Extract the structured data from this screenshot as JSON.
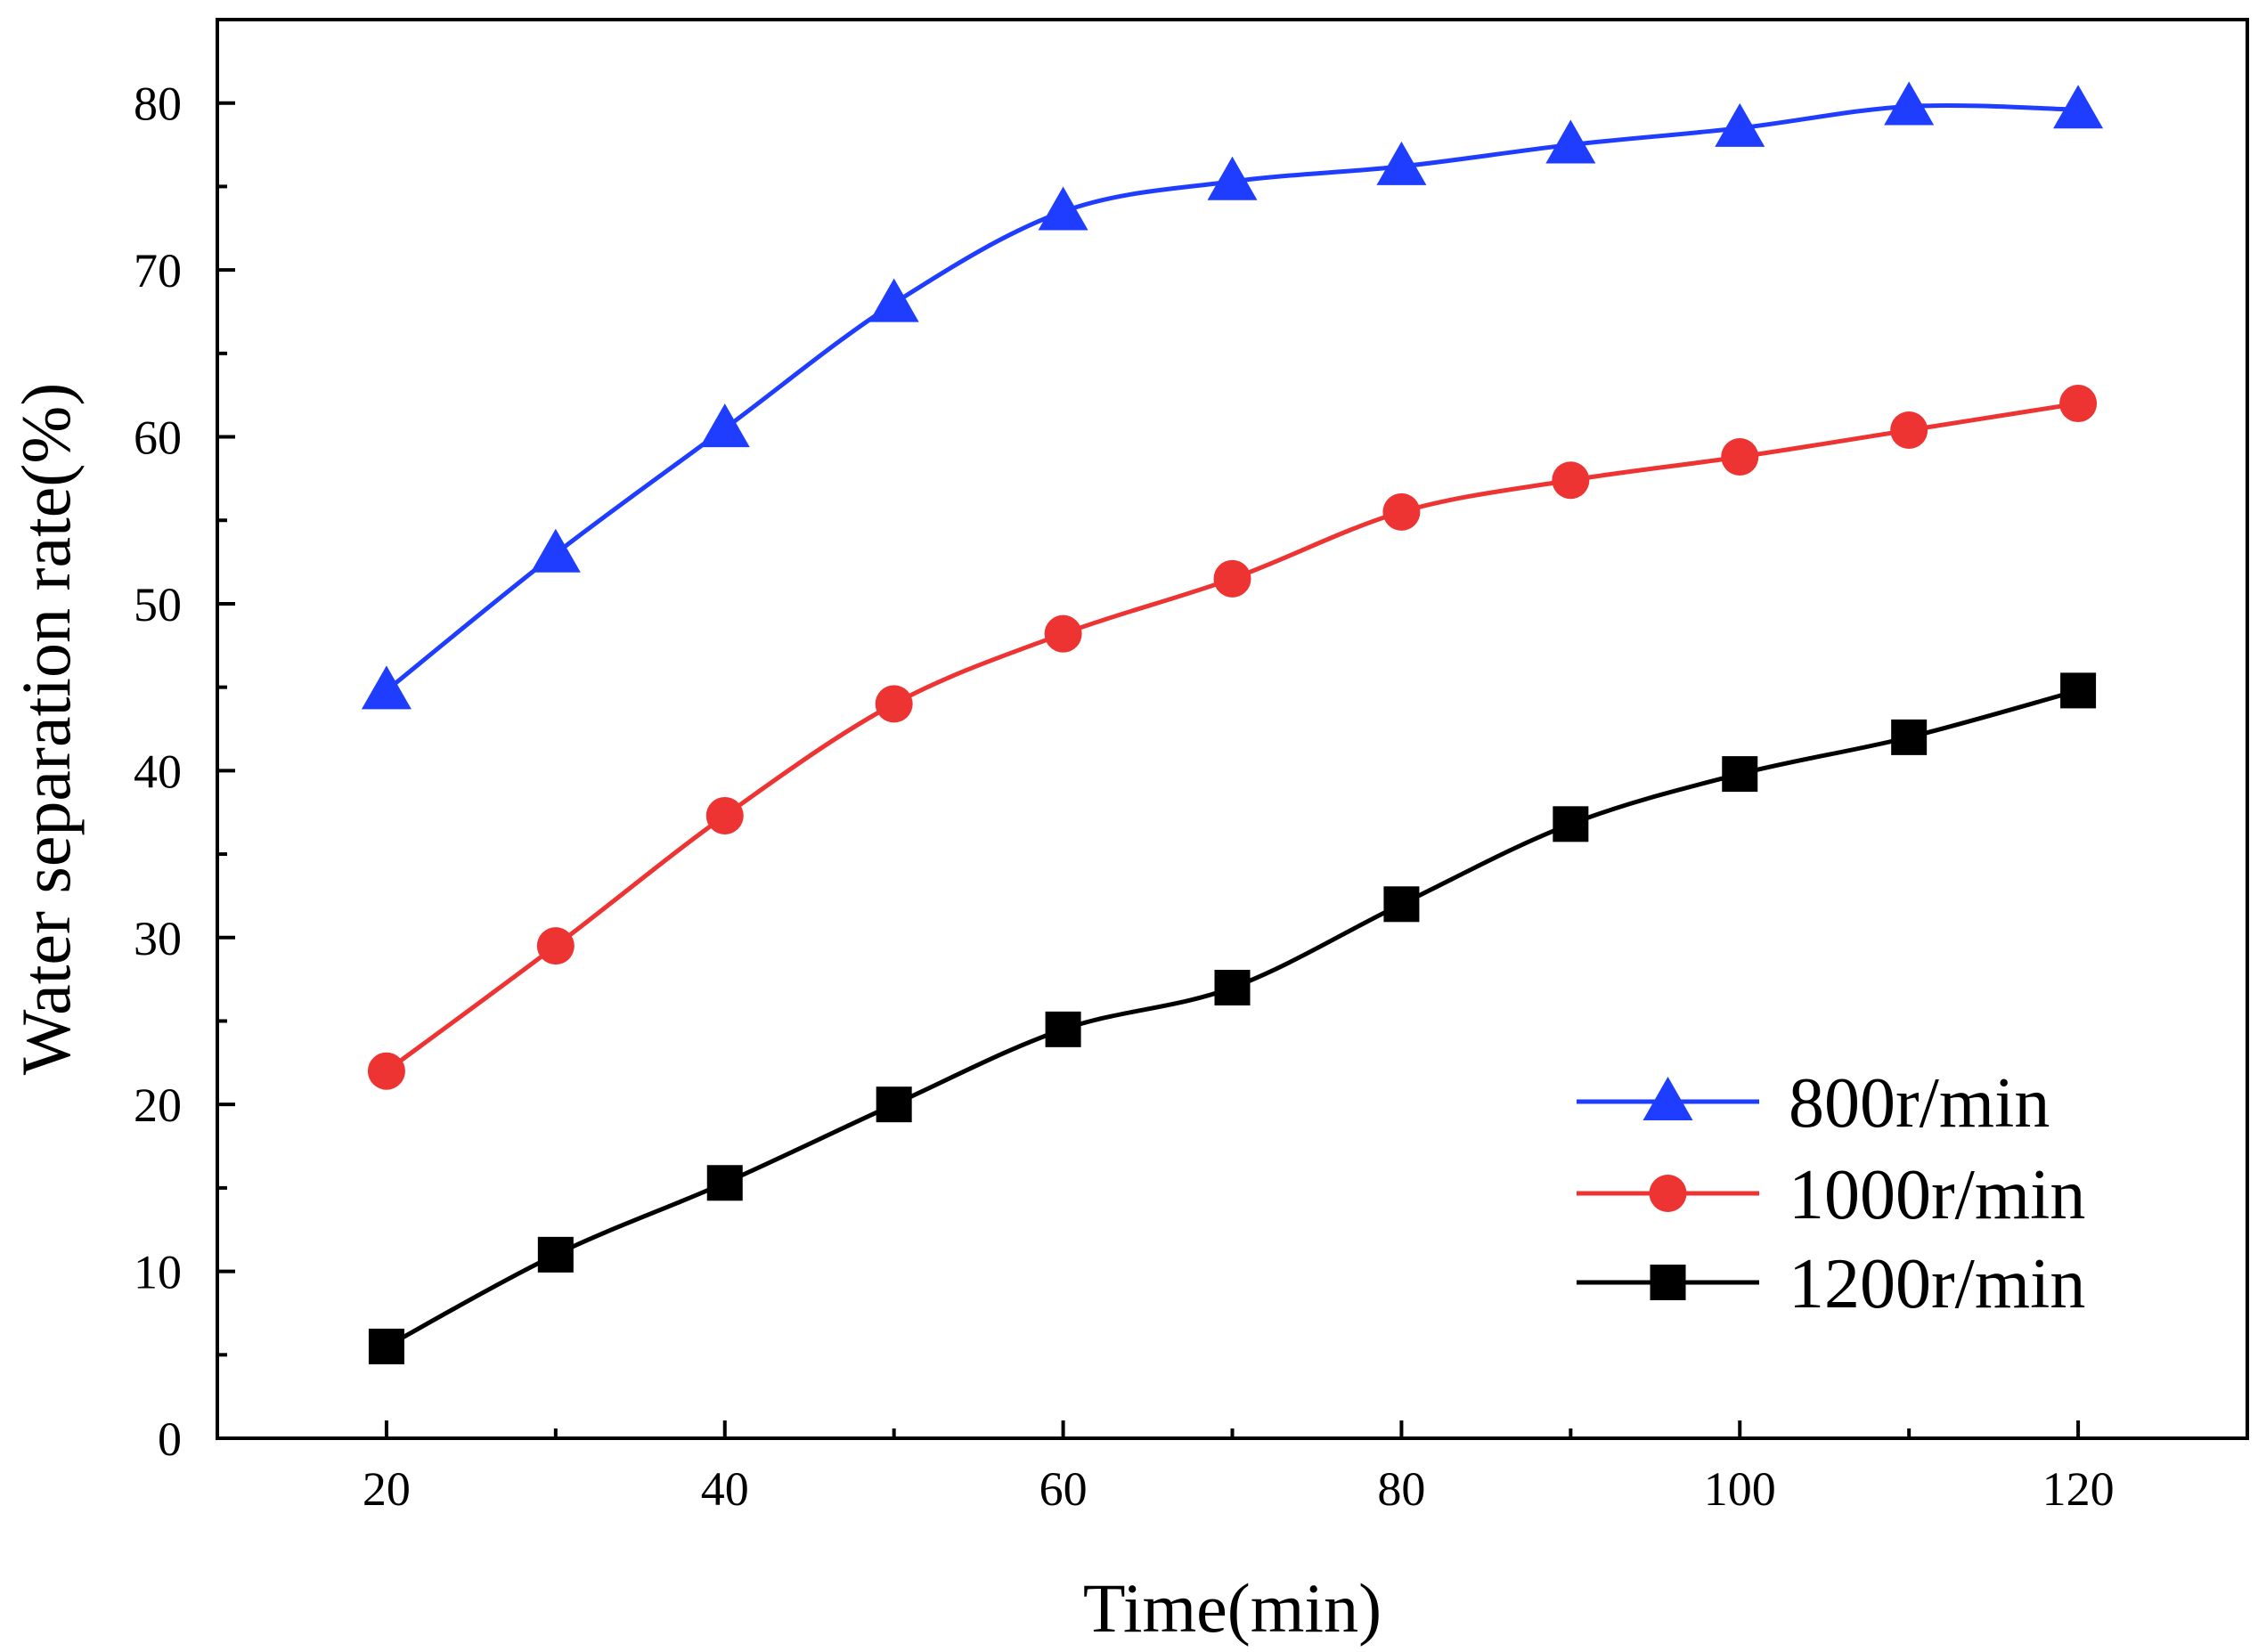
{
  "chart_data": {
    "type": "line",
    "title": "",
    "xlabel": "Time(min)",
    "ylabel": "Water separation rate(%)",
    "xlim": [
      10,
      130
    ],
    "ylim": [
      0,
      85
    ],
    "xticks": [
      20,
      40,
      60,
      80,
      100,
      120
    ],
    "yticks": [
      0,
      10,
      20,
      30,
      40,
      50,
      60,
      70,
      80
    ],
    "x": [
      20,
      30,
      40,
      50,
      60,
      70,
      80,
      90,
      100,
      110,
      120
    ],
    "legend_position": "lower-right",
    "grid": false,
    "series": [
      {
        "name": "800r/min",
        "marker": "triangle",
        "color": "#1f3dff",
        "values": [
          44.8,
          53.0,
          60.5,
          68.0,
          73.5,
          75.3,
          76.2,
          77.5,
          78.5,
          79.8,
          79.6
        ]
      },
      {
        "name": "1000r/min",
        "marker": "circle",
        "color": "#ee3333",
        "values": [
          22.0,
          29.5,
          37.3,
          44.0,
          48.2,
          51.5,
          55.5,
          57.4,
          58.8,
          60.4,
          62.0
        ]
      },
      {
        "name": "1200r/min",
        "marker": "square",
        "color": "#000000",
        "values": [
          5.5,
          11.0,
          15.3,
          20.0,
          24.5,
          27.0,
          32.0,
          36.8,
          39.8,
          42.0,
          44.8
        ]
      }
    ]
  }
}
